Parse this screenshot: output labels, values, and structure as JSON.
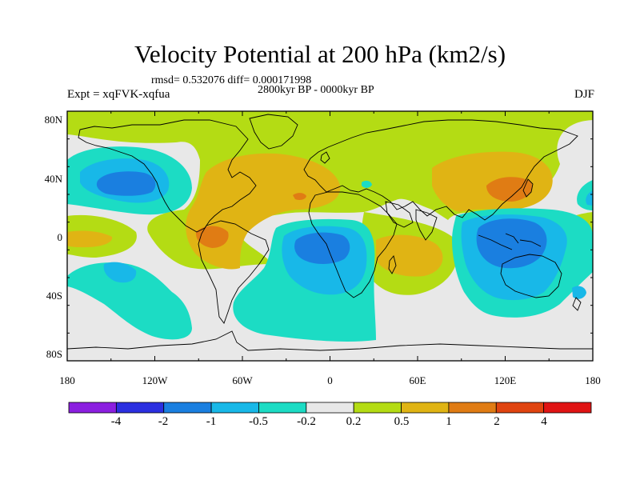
{
  "title": "Velocity Potential at 200 hPa (km2/s)",
  "stats": "rmsd= 0.532076 diff= 0.000171998",
  "period": "2800kyr BP - 0000kyr BP",
  "experiment": "Expt = xqFVK-xqfua",
  "season": "DJF",
  "latitude_ticks": [
    "80N",
    "40N",
    "0",
    "40S",
    "80S"
  ],
  "longitude_ticks": [
    "180",
    "120W",
    "60W",
    "0",
    "60E",
    "120E",
    "180"
  ],
  "colorbar": {
    "labels": [
      "-4",
      "-2",
      "-1",
      "-0.5",
      "-0.2",
      "0.2",
      "0.5",
      "1",
      "2",
      "4"
    ],
    "colors": [
      "#8b1fe0",
      "#2b2fe0",
      "#1a7fe0",
      "#18b8e8",
      "#1cdcc4",
      "#e8e8e8",
      "#b4dc14",
      "#e0b414",
      "#e07c14",
      "#e04410",
      "#e01414"
    ]
  },
  "colors": {
    "strong_negative": "#1a7fe0",
    "negative": "#18b8e8",
    "weak_negative": "#1cdcc4",
    "neutral": "#e8e8e8",
    "weak_positive": "#b4dc14",
    "positive": "#e0b414",
    "strong_positive": "#e07c14"
  }
}
